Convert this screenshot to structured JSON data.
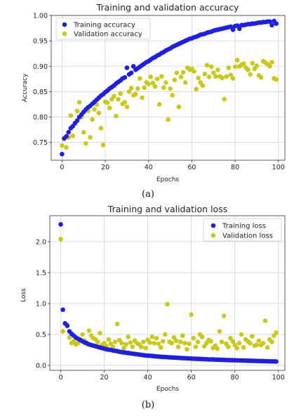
{
  "chart_data": [
    {
      "type": "scatter",
      "title": "Training and validation accuracy",
      "xlabel": "Epochs",
      "ylabel": "Accuracy",
      "caption": "(a)",
      "xlim": [
        -5,
        103
      ],
      "ylim": [
        0.715,
        1.0
      ],
      "grid": true,
      "legend_position": "top-left",
      "x_ticks": [
        0,
        20,
        40,
        60,
        80,
        100
      ],
      "y_ticks": [
        0.75,
        0.8,
        0.85,
        0.9,
        0.95,
        1.0
      ],
      "x_tick_labels": [
        "0",
        "20",
        "40",
        "60",
        "80",
        "100"
      ],
      "y_tick_labels": [
        "0.75",
        "0.80",
        "0.85",
        "0.90",
        "0.95",
        "1.00"
      ],
      "series": [
        {
          "name": "Training accuracy",
          "color": "#1f1fdd",
          "x": [
            0,
            1,
            2,
            3,
            4,
            5,
            6,
            7,
            8,
            9,
            10,
            11,
            12,
            13,
            14,
            15,
            16,
            17,
            18,
            19,
            20,
            21,
            22,
            23,
            24,
            25,
            26,
            27,
            28,
            29,
            30,
            31,
            32,
            33,
            34,
            35,
            36,
            37,
            38,
            39,
            40,
            41,
            42,
            43,
            44,
            45,
            46,
            47,
            48,
            49,
            50,
            51,
            52,
            53,
            54,
            55,
            56,
            57,
            58,
            59,
            60,
            61,
            62,
            63,
            64,
            65,
            66,
            67,
            68,
            69,
            70,
            71,
            72,
            73,
            74,
            75,
            76,
            77,
            78,
            79,
            80,
            81,
            82,
            83,
            84,
            85,
            86,
            87,
            88,
            89,
            90,
            91,
            92,
            93,
            94,
            95,
            96,
            97,
            98,
            99
          ],
          "y": [
            0.727,
            0.758,
            0.762,
            0.77,
            0.778,
            0.782,
            0.788,
            0.793,
            0.8,
            0.805,
            0.81,
            0.815,
            0.819,
            0.822,
            0.826,
            0.83,
            0.834,
            0.838,
            0.842,
            0.845,
            0.849,
            0.852,
            0.856,
            0.859,
            0.862,
            0.866,
            0.869,
            0.872,
            0.876,
            0.878,
            0.897,
            0.884,
            0.887,
            0.9,
            0.893,
            0.896,
            0.899,
            0.902,
            0.905,
            0.908,
            0.91,
            0.913,
            0.916,
            0.918,
            0.921,
            0.923,
            0.926,
            0.928,
            0.931,
            0.933,
            0.935,
            0.938,
            0.94,
            0.942,
            0.944,
            0.946,
            0.948,
            0.95,
            0.952,
            0.954,
            0.955,
            0.957,
            0.958,
            0.96,
            0.962,
            0.963,
            0.964,
            0.966,
            0.967,
            0.968,
            0.97,
            0.971,
            0.972,
            0.973,
            0.974,
            0.975,
            0.976,
            0.977,
            0.978,
            0.972,
            0.979,
            0.98,
            0.974,
            0.981,
            0.981,
            0.982,
            0.983,
            0.983,
            0.984,
            0.984,
            0.985,
            0.986,
            0.986,
            0.987,
            0.987,
            0.988,
            0.988,
            0.981,
            0.989,
            0.984
          ]
        },
        {
          "name": "Validation accuracy",
          "color": "#c8c81e",
          "x": [
            0,
            1,
            2,
            3,
            4,
            5,
            6,
            7,
            8,
            9,
            10,
            11,
            12,
            13,
            14,
            15,
            16,
            17,
            18,
            19,
            20,
            21,
            22,
            23,
            24,
            25,
            26,
            27,
            28,
            29,
            30,
            31,
            32,
            33,
            34,
            35,
            36,
            37,
            38,
            39,
            40,
            41,
            42,
            43,
            44,
            45,
            46,
            47,
            48,
            49,
            50,
            51,
            52,
            53,
            54,
            55,
            56,
            57,
            58,
            59,
            60,
            61,
            62,
            63,
            64,
            65,
            66,
            67,
            68,
            69,
            70,
            71,
            72,
            73,
            74,
            75,
            76,
            77,
            78,
            79,
            80,
            81,
            82,
            83,
            84,
            85,
            86,
            87,
            88,
            89,
            90,
            91,
            92,
            93,
            94,
            95,
            96,
            97,
            98,
            99
          ],
          "y": [
            0.744,
            0.757,
            0.74,
            0.76,
            0.803,
            0.763,
            0.788,
            0.812,
            0.829,
            0.8,
            0.77,
            0.748,
            0.812,
            0.76,
            0.795,
            0.815,
            0.825,
            0.808,
            0.778,
            0.745,
            0.83,
            0.828,
            0.818,
            0.835,
            0.841,
            0.802,
            0.835,
            0.846,
            0.826,
            0.829,
            0.82,
            0.85,
            0.857,
            0.843,
            0.845,
            0.856,
            0.876,
            0.838,
            0.858,
            0.868,
            0.865,
            0.879,
            0.867,
            0.86,
            0.875,
            0.825,
            0.88,
            0.858,
            0.868,
            0.795,
            0.856,
            0.843,
            0.873,
            0.887,
            0.82,
            0.879,
            0.888,
            0.868,
            0.897,
            0.893,
            0.895,
            0.89,
            0.855,
            0.877,
            0.868,
            0.862,
            0.885,
            0.902,
            0.879,
            0.899,
            0.887,
            0.88,
            0.893,
            0.88,
            0.877,
            0.835,
            0.88,
            0.897,
            0.883,
            0.876,
            0.899,
            0.912,
            0.9,
            0.903,
            0.905,
            0.897,
            0.893,
            0.884,
            0.906,
            0.895,
            0.901,
            0.882,
            0.878,
            0.91,
            0.907,
            0.904,
            0.9,
            0.908,
            0.876,
            0.874
          ]
        }
      ]
    },
    {
      "type": "scatter",
      "title": "Training and validation loss",
      "xlabel": "Epochs",
      "ylabel": "Loss",
      "caption": "(b)",
      "xlim": [
        -5,
        103
      ],
      "ylim": [
        -0.08,
        2.42
      ],
      "grid": true,
      "legend_position": "top-right",
      "x_ticks": [
        0,
        20,
        40,
        60,
        80,
        100
      ],
      "y_ticks": [
        0.0,
        0.5,
        1.0,
        1.5,
        2.0
      ],
      "x_tick_labels": [
        "0",
        "20",
        "40",
        "60",
        "80",
        "100"
      ],
      "y_tick_labels": [
        "0.0",
        "0.5",
        "1.0",
        "1.5",
        "2.0"
      ],
      "series": [
        {
          "name": "Training loss",
          "color": "#1f1fdd",
          "x": [
            0,
            1,
            2,
            3,
            4,
            5,
            6,
            7,
            8,
            9,
            10,
            11,
            12,
            13,
            14,
            15,
            16,
            17,
            18,
            19,
            20,
            21,
            22,
            23,
            24,
            25,
            26,
            27,
            28,
            29,
            30,
            31,
            32,
            33,
            34,
            35,
            36,
            37,
            38,
            39,
            40,
            41,
            42,
            43,
            44,
            45,
            46,
            47,
            48,
            49,
            50,
            51,
            52,
            53,
            54,
            55,
            56,
            57,
            58,
            59,
            60,
            61,
            62,
            63,
            64,
            65,
            66,
            67,
            68,
            69,
            70,
            71,
            72,
            73,
            74,
            75,
            76,
            77,
            78,
            79,
            80,
            81,
            82,
            83,
            84,
            85,
            86,
            87,
            88,
            89,
            90,
            91,
            92,
            93,
            94,
            95,
            96,
            97,
            98,
            99
          ],
          "y": [
            2.28,
            0.9,
            0.68,
            0.64,
            0.55,
            0.51,
            0.48,
            0.45,
            0.43,
            0.41,
            0.39,
            0.37,
            0.36,
            0.34,
            0.33,
            0.32,
            0.31,
            0.3,
            0.29,
            0.28,
            0.27,
            0.26,
            0.255,
            0.25,
            0.24,
            0.235,
            0.23,
            0.22,
            0.215,
            0.21,
            0.205,
            0.2,
            0.195,
            0.19,
            0.185,
            0.18,
            0.175,
            0.17,
            0.165,
            0.16,
            0.158,
            0.155,
            0.152,
            0.148,
            0.145,
            0.142,
            0.14,
            0.137,
            0.135,
            0.133,
            0.13,
            0.128,
            0.126,
            0.124,
            0.122,
            0.12,
            0.118,
            0.116,
            0.114,
            0.112,
            0.11,
            0.108,
            0.107,
            0.105,
            0.104,
            0.102,
            0.1,
            0.099,
            0.097,
            0.096,
            0.095,
            0.093,
            0.092,
            0.091,
            0.09,
            0.088,
            0.087,
            0.086,
            0.085,
            0.084,
            0.083,
            0.082,
            0.08,
            0.079,
            0.078,
            0.077,
            0.076,
            0.075,
            0.074,
            0.073,
            0.072,
            0.071,
            0.07,
            0.069,
            0.068,
            0.067,
            0.066,
            0.065,
            0.064,
            0.063
          ]
        },
        {
          "name": "Validation loss",
          "color": "#c8c81e",
          "x": [
            0,
            1,
            2,
            3,
            4,
            5,
            6,
            7,
            8,
            9,
            10,
            11,
            12,
            13,
            14,
            15,
            16,
            17,
            18,
            19,
            20,
            21,
            22,
            23,
            24,
            25,
            26,
            27,
            28,
            29,
            30,
            31,
            32,
            33,
            34,
            35,
            36,
            37,
            38,
            39,
            40,
            41,
            42,
            43,
            44,
            45,
            46,
            47,
            48,
            49,
            50,
            51,
            52,
            53,
            54,
            55,
            56,
            57,
            58,
            59,
            60,
            61,
            62,
            63,
            64,
            65,
            66,
            67,
            68,
            69,
            70,
            71,
            72,
            73,
            74,
            75,
            76,
            77,
            78,
            79,
            80,
            81,
            82,
            83,
            84,
            85,
            86,
            87,
            88,
            89,
            90,
            91,
            92,
            93,
            94,
            95,
            96,
            97,
            98,
            99
          ],
          "y": [
            2.04,
            0.55,
            0.68,
            0.66,
            0.45,
            0.36,
            0.39,
            0.34,
            0.36,
            0.42,
            0.5,
            0.4,
            0.34,
            0.56,
            0.48,
            0.44,
            0.42,
            0.38,
            0.52,
            0.33,
            0.36,
            0.31,
            0.42,
            0.35,
            0.3,
            0.38,
            0.67,
            0.41,
            0.36,
            0.28,
            0.34,
            0.46,
            0.37,
            0.3,
            0.4,
            0.36,
            0.34,
            0.3,
            0.38,
            0.28,
            0.41,
            0.37,
            0.46,
            0.36,
            0.44,
            0.35,
            0.29,
            0.39,
            0.5,
            0.99,
            0.38,
            0.36,
            0.45,
            0.4,
            0.3,
            0.38,
            0.48,
            0.36,
            0.26,
            0.35,
            0.82,
            0.44,
            0.3,
            0.38,
            0.5,
            0.46,
            0.31,
            0.36,
            0.41,
            0.39,
            0.28,
            0.32,
            0.27,
            0.55,
            0.38,
            0.8,
            0.35,
            0.3,
            0.44,
            0.39,
            0.33,
            0.28,
            0.36,
            0.5,
            0.29,
            0.42,
            0.39,
            0.36,
            0.47,
            0.32,
            0.33,
            0.4,
            0.33,
            0.36,
            0.72,
            0.29,
            0.42,
            0.38,
            0.48,
            0.53
          ]
        }
      ]
    }
  ]
}
